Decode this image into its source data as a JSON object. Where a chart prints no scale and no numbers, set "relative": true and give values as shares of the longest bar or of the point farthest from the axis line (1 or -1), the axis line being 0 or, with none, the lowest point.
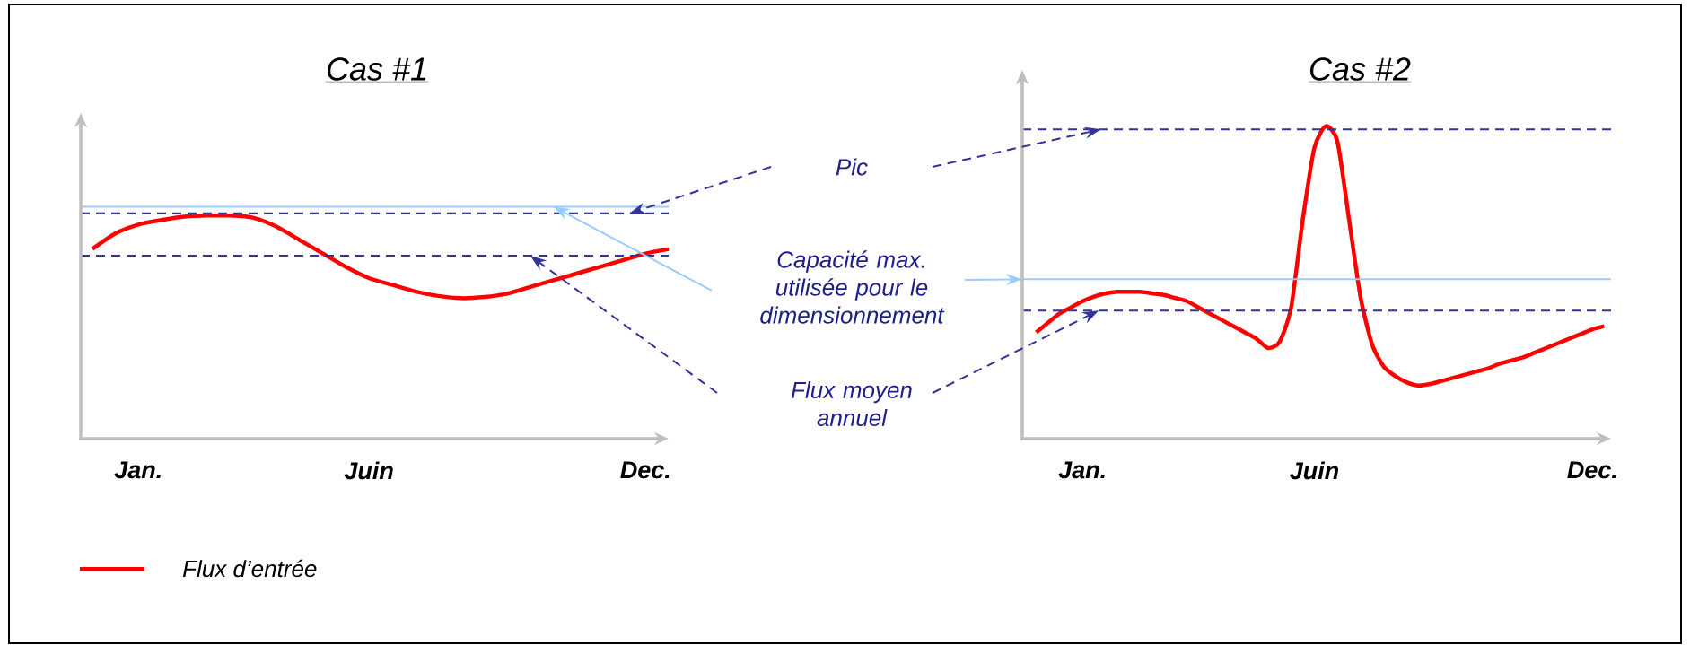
{
  "chart_data": [
    {
      "type": "line",
      "title": "Cas #1",
      "relative": true,
      "categories": [
        null,
        null,
        "Jan.",
        null,
        null,
        null,
        null,
        null,
        null,
        null,
        null,
        null,
        "Juin",
        null,
        null,
        null,
        null,
        null,
        null,
        null,
        null,
        null,
        null,
        null,
        "Dec.",
        null
      ],
      "tick_labels": "x",
      "series": [
        {
          "name": "Flux d’entrée",
          "color": "#ff0000",
          "values": [
            0.85,
            0.92,
            0.96,
            0.98,
            0.995,
            1,
            1,
            0.99,
            0.95,
            0.89,
            0.83,
            0.77,
            0.72,
            0.69,
            0.66,
            0.64,
            0.63,
            0.635,
            0.65,
            0.68,
            0.71,
            0.74,
            0.77,
            0.8,
            0.83,
            0.85
          ]
        }
      ],
      "ref_lines": [
        {
          "axis": "y",
          "value": 1.01,
          "color": "#333399",
          "line_style": "dashed"
        },
        {
          "axis": "y",
          "value": 1.04,
          "color": "#99ccff",
          "line_style": "solid"
        },
        {
          "axis": "y",
          "value": 0.82,
          "color": "#333399",
          "line_style": "dashed"
        }
      ],
      "annotations": [
        "Pic",
        "Capacité max. utilisée pour le dimensionnement",
        "Flux moyen annuel"
      ],
      "legend": "bottom left"
    },
    {
      "type": "line",
      "title": "Cas  #2",
      "relative": true,
      "categories": [
        null,
        null,
        null,
        null,
        "Jan.",
        null,
        null,
        null,
        null,
        null,
        null,
        null,
        null,
        null,
        null,
        null,
        null,
        null,
        null,
        null,
        null,
        null,
        null,
        null,
        "Juin",
        null,
        null,
        null,
        null,
        null,
        null,
        null,
        null,
        null,
        null,
        null,
        null,
        null,
        null,
        null,
        null,
        null,
        null,
        null,
        null,
        null,
        null,
        null,
        "Dec.",
        null
      ],
      "tick_labels": "x",
      "series": [
        {
          "color": "#ff0000",
          "values": [
            0.34,
            0.37,
            0.4,
            0.42,
            0.44,
            0.455,
            0.465,
            0.47,
            0.47,
            0.47,
            0.465,
            0.46,
            0.45,
            0.44,
            0.42,
            0.4,
            0.38,
            0.36,
            0.34,
            0.32,
            0.29,
            0.31,
            0.42,
            0.7,
            0.93,
            1,
            0.95,
            0.7,
            0.45,
            0.3,
            0.23,
            0.2,
            0.18,
            0.17,
            0.175,
            0.185,
            0.195,
            0.205,
            0.215,
            0.225,
            0.24,
            0.25,
            0.26,
            0.275,
            0.29,
            0.305,
            0.32,
            0.335,
            0.35,
            0.36
          ]
        }
      ],
      "ref_lines": [
        {
          "axis": "y",
          "value": 0.99,
          "color": "#333399",
          "line_style": "dashed"
        },
        {
          "axis": "y",
          "value": 0.51,
          "color": "#99ccff",
          "line_style": "solid"
        },
        {
          "axis": "y",
          "value": 0.41,
          "color": "#333399",
          "line_style": "dashed"
        }
      ]
    }
  ]
}
